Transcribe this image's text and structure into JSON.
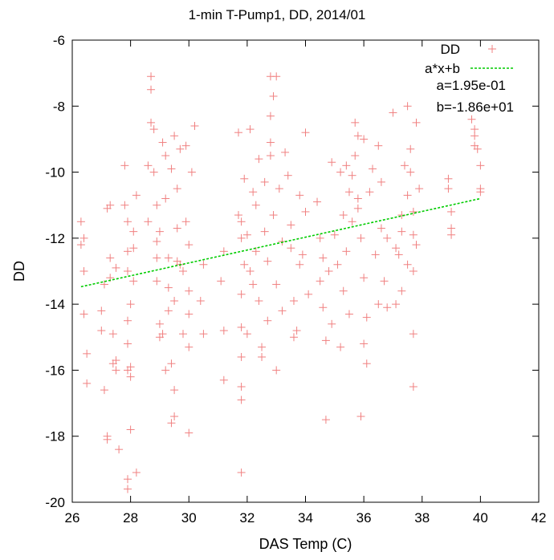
{
  "chart_data": {
    "type": "scatter",
    "title": "1-min T-Pump1, DD, 2014/01",
    "xlabel": "DAS Temp (C)",
    "ylabel": "DD",
    "xlim": [
      26,
      42
    ],
    "ylim": [
      -20,
      -6
    ],
    "xticks": [
      26,
      28,
      30,
      32,
      34,
      36,
      38,
      40,
      42
    ],
    "yticks": [
      -20,
      -18,
      -16,
      -14,
      -12,
      -10,
      -8,
      -6
    ],
    "grid": false,
    "legend_position": "top-right",
    "colors": {
      "points": "#f08080",
      "fit": "#00cc00"
    },
    "series": [
      {
        "name": "DD",
        "marker": "plus",
        "points": [
          [
            26.3,
            -11.5
          ],
          [
            26.3,
            -12.2
          ],
          [
            26.4,
            -13.0
          ],
          [
            26.4,
            -14.3
          ],
          [
            26.5,
            -15.5
          ],
          [
            26.5,
            -16.4
          ],
          [
            26.4,
            -12.0
          ],
          [
            27.0,
            -14.8
          ],
          [
            27.0,
            -14.2
          ],
          [
            27.1,
            -13.4
          ],
          [
            27.1,
            -16.6
          ],
          [
            27.2,
            -18.0
          ],
          [
            27.2,
            -18.1
          ],
          [
            27.2,
            -11.1
          ],
          [
            27.3,
            -11.0
          ],
          [
            27.3,
            -12.6
          ],
          [
            27.3,
            -13.2
          ],
          [
            27.4,
            -14.9
          ],
          [
            27.4,
            -15.8
          ],
          [
            27.5,
            -12.9
          ],
          [
            27.5,
            -16.0
          ],
          [
            27.6,
            -18.4
          ],
          [
            27.5,
            -15.7
          ],
          [
            27.8,
            -9.8
          ],
          [
            27.8,
            -11.0
          ],
          [
            27.9,
            -11.5
          ],
          [
            27.9,
            -12.4
          ],
          [
            27.9,
            -13.0
          ],
          [
            27.9,
            -14.5
          ],
          [
            27.9,
            -15.2
          ],
          [
            27.9,
            -16.0
          ],
          [
            28.0,
            -16.2
          ],
          [
            28.0,
            -17.8
          ],
          [
            27.9,
            -19.3
          ],
          [
            27.9,
            -19.6
          ],
          [
            28.0,
            -14.0
          ],
          [
            28.1,
            -13.3
          ],
          [
            28.1,
            -12.3
          ],
          [
            28.2,
            -10.7
          ],
          [
            28.2,
            -19.1
          ],
          [
            28.0,
            -15.9
          ],
          [
            28.1,
            -11.8
          ],
          [
            28.6,
            -9.8
          ],
          [
            28.6,
            -11.5
          ],
          [
            28.7,
            -7.1
          ],
          [
            28.7,
            -7.5
          ],
          [
            28.7,
            -8.5
          ],
          [
            28.8,
            -8.7
          ],
          [
            28.8,
            -10.0
          ],
          [
            28.9,
            -11.0
          ],
          [
            28.9,
            -12.1
          ],
          [
            28.9,
            -13.3
          ],
          [
            29.0,
            -14.6
          ],
          [
            29.0,
            -15.0
          ],
          [
            29.1,
            -9.1
          ],
          [
            29.2,
            -9.5
          ],
          [
            29.2,
            -10.8
          ],
          [
            29.3,
            -12.6
          ],
          [
            29.3,
            -13.5
          ],
          [
            29.3,
            -14.2
          ],
          [
            29.4,
            -15.8
          ],
          [
            29.4,
            -17.6
          ],
          [
            29.5,
            -17.4
          ],
          [
            29.5,
            -16.6
          ],
          [
            29.5,
            -13.9
          ],
          [
            29.6,
            -12.7
          ],
          [
            29.6,
            -11.7
          ],
          [
            29.6,
            -10.5
          ],
          [
            29.5,
            -8.9
          ],
          [
            29.7,
            -9.3
          ],
          [
            29.8,
            -14.9
          ],
          [
            29.8,
            -13.0
          ],
          [
            29.9,
            -9.2
          ],
          [
            29.9,
            -11.5
          ],
          [
            30.0,
            -12.2
          ],
          [
            30.0,
            -13.6
          ],
          [
            30.0,
            -14.3
          ],
          [
            30.0,
            -15.3
          ],
          [
            30.0,
            -17.9
          ],
          [
            30.1,
            -10.0
          ],
          [
            30.2,
            -8.6
          ],
          [
            28.9,
            -12.6
          ],
          [
            29.1,
            -14.9
          ],
          [
            29.4,
            -9.9
          ],
          [
            29.7,
            -12.8
          ],
          [
            29.2,
            -16.0
          ],
          [
            29.0,
            -11.8
          ],
          [
            30.4,
            -13.9
          ],
          [
            30.5,
            -12.8
          ],
          [
            30.5,
            -14.9
          ],
          [
            31.1,
            -13.3
          ],
          [
            31.2,
            -14.8
          ],
          [
            31.2,
            -16.3
          ],
          [
            31.2,
            -12.4
          ],
          [
            31.7,
            -8.8
          ],
          [
            31.7,
            -11.3
          ],
          [
            31.8,
            -11.5
          ],
          [
            31.8,
            -12.0
          ],
          [
            31.8,
            -13.7
          ],
          [
            31.8,
            -14.7
          ],
          [
            31.8,
            -15.6
          ],
          [
            31.8,
            -16.5
          ],
          [
            31.8,
            -16.9
          ],
          [
            31.8,
            -19.1
          ],
          [
            31.9,
            -10.2
          ],
          [
            31.9,
            -12.8
          ],
          [
            32.0,
            -11.9
          ],
          [
            32.0,
            -14.9
          ],
          [
            32.1,
            -8.7
          ],
          [
            32.1,
            -13.0
          ],
          [
            32.2,
            -10.6
          ],
          [
            32.3,
            -11.0
          ],
          [
            32.3,
            -12.4
          ],
          [
            32.4,
            -9.6
          ],
          [
            32.4,
            -13.9
          ],
          [
            32.5,
            -15.3
          ],
          [
            32.6,
            -11.8
          ],
          [
            32.6,
            -10.3
          ],
          [
            32.7,
            -12.7
          ],
          [
            32.7,
            -14.5
          ],
          [
            32.8,
            -9.1
          ],
          [
            32.8,
            -8.3
          ],
          [
            32.8,
            -7.1
          ],
          [
            32.9,
            -11.3
          ],
          [
            33.0,
            -13.4
          ],
          [
            33.0,
            -16.0
          ],
          [
            33.1,
            -10.5
          ],
          [
            33.2,
            -12.1
          ],
          [
            33.2,
            -14.2
          ],
          [
            32.5,
            -15.6
          ],
          [
            32.2,
            -13.4
          ],
          [
            33.0,
            -7.1
          ],
          [
            32.8,
            -9.5
          ],
          [
            32.9,
            -7.7
          ],
          [
            33.3,
            -9.4
          ],
          [
            33.4,
            -10.1
          ],
          [
            33.5,
            -11.6
          ],
          [
            33.5,
            -12.3
          ],
          [
            33.6,
            -13.9
          ],
          [
            33.7,
            -14.8
          ],
          [
            33.8,
            -10.7
          ],
          [
            33.9,
            -12.5
          ],
          [
            34.0,
            -8.8
          ],
          [
            34.0,
            -11.2
          ],
          [
            34.1,
            -13.7
          ],
          [
            33.6,
            -15.0
          ],
          [
            33.8,
            -12.8
          ],
          [
            34.4,
            -10.9
          ],
          [
            34.5,
            -12.0
          ],
          [
            34.5,
            -13.3
          ],
          [
            34.6,
            -12.6
          ],
          [
            34.6,
            -14.1
          ],
          [
            34.7,
            -15.1
          ],
          [
            34.7,
            -17.5
          ],
          [
            34.8,
            -13.0
          ],
          [
            34.9,
            -9.7
          ],
          [
            35.0,
            -11.9
          ],
          [
            35.1,
            -12.8
          ],
          [
            35.2,
            -10.0
          ],
          [
            35.3,
            -11.3
          ],
          [
            35.3,
            -13.6
          ],
          [
            35.4,
            -9.8
          ],
          [
            35.4,
            -12.4
          ],
          [
            35.5,
            -10.6
          ],
          [
            35.5,
            -14.3
          ],
          [
            35.6,
            -10.1
          ],
          [
            35.6,
            -11.5
          ],
          [
            35.7,
            -8.5
          ],
          [
            35.7,
            -9.5
          ],
          [
            35.8,
            -10.8
          ],
          [
            35.8,
            -11.1
          ],
          [
            35.9,
            -12.0
          ],
          [
            35.9,
            -17.4
          ],
          [
            36.0,
            -9.0
          ],
          [
            36.0,
            -13.2
          ],
          [
            36.0,
            -15.2
          ],
          [
            36.1,
            -14.4
          ],
          [
            36.1,
            -15.8
          ],
          [
            36.2,
            -10.6
          ],
          [
            36.3,
            -9.9
          ],
          [
            36.4,
            -12.5
          ],
          [
            36.5,
            -9.2
          ],
          [
            36.5,
            -14.0
          ],
          [
            36.6,
            -10.3
          ],
          [
            36.6,
            -11.7
          ],
          [
            36.7,
            -13.3
          ],
          [
            36.8,
            -12.0
          ],
          [
            36.8,
            -14.1
          ],
          [
            35.2,
            -15.3
          ],
          [
            34.9,
            -14.6
          ],
          [
            35.8,
            -8.9
          ],
          [
            37.0,
            -8.2
          ],
          [
            37.1,
            -12.3
          ],
          [
            37.1,
            -14.0
          ],
          [
            37.2,
            -12.5
          ],
          [
            37.3,
            -13.6
          ],
          [
            37.3,
            -11.8
          ],
          [
            37.4,
            -9.8
          ],
          [
            37.5,
            -10.7
          ],
          [
            37.5,
            -8.0
          ],
          [
            37.6,
            -10.0
          ],
          [
            37.6,
            -9.3
          ],
          [
            37.7,
            -11.2
          ],
          [
            37.7,
            -11.9
          ],
          [
            37.7,
            -13.0
          ],
          [
            37.7,
            -14.9
          ],
          [
            37.7,
            -16.5
          ],
          [
            37.8,
            -12.2
          ],
          [
            37.8,
            -8.5
          ],
          [
            37.9,
            -10.5
          ],
          [
            37.5,
            -12.8
          ],
          [
            37.3,
            -11.3
          ],
          [
            38.9,
            -10.2
          ],
          [
            38.9,
            -10.5
          ],
          [
            39.0,
            -11.2
          ],
          [
            39.0,
            -11.7
          ],
          [
            39.0,
            -11.9
          ],
          [
            39.7,
            -8.4
          ],
          [
            39.8,
            -8.9
          ],
          [
            39.8,
            -9.2
          ],
          [
            39.9,
            -9.3
          ],
          [
            40.0,
            -9.8
          ],
          [
            40.0,
            -10.5
          ],
          [
            40.0,
            -10.6
          ],
          [
            39.8,
            -8.7
          ]
        ]
      }
    ],
    "fit": {
      "name": "a*x+b",
      "marker": "dashed-line",
      "a": 0.195,
      "b": -18.6,
      "x_range": [
        26.3,
        40.0
      ],
      "labels": [
        "a=1.95e-01",
        "b=-1.86e+01"
      ]
    }
  }
}
